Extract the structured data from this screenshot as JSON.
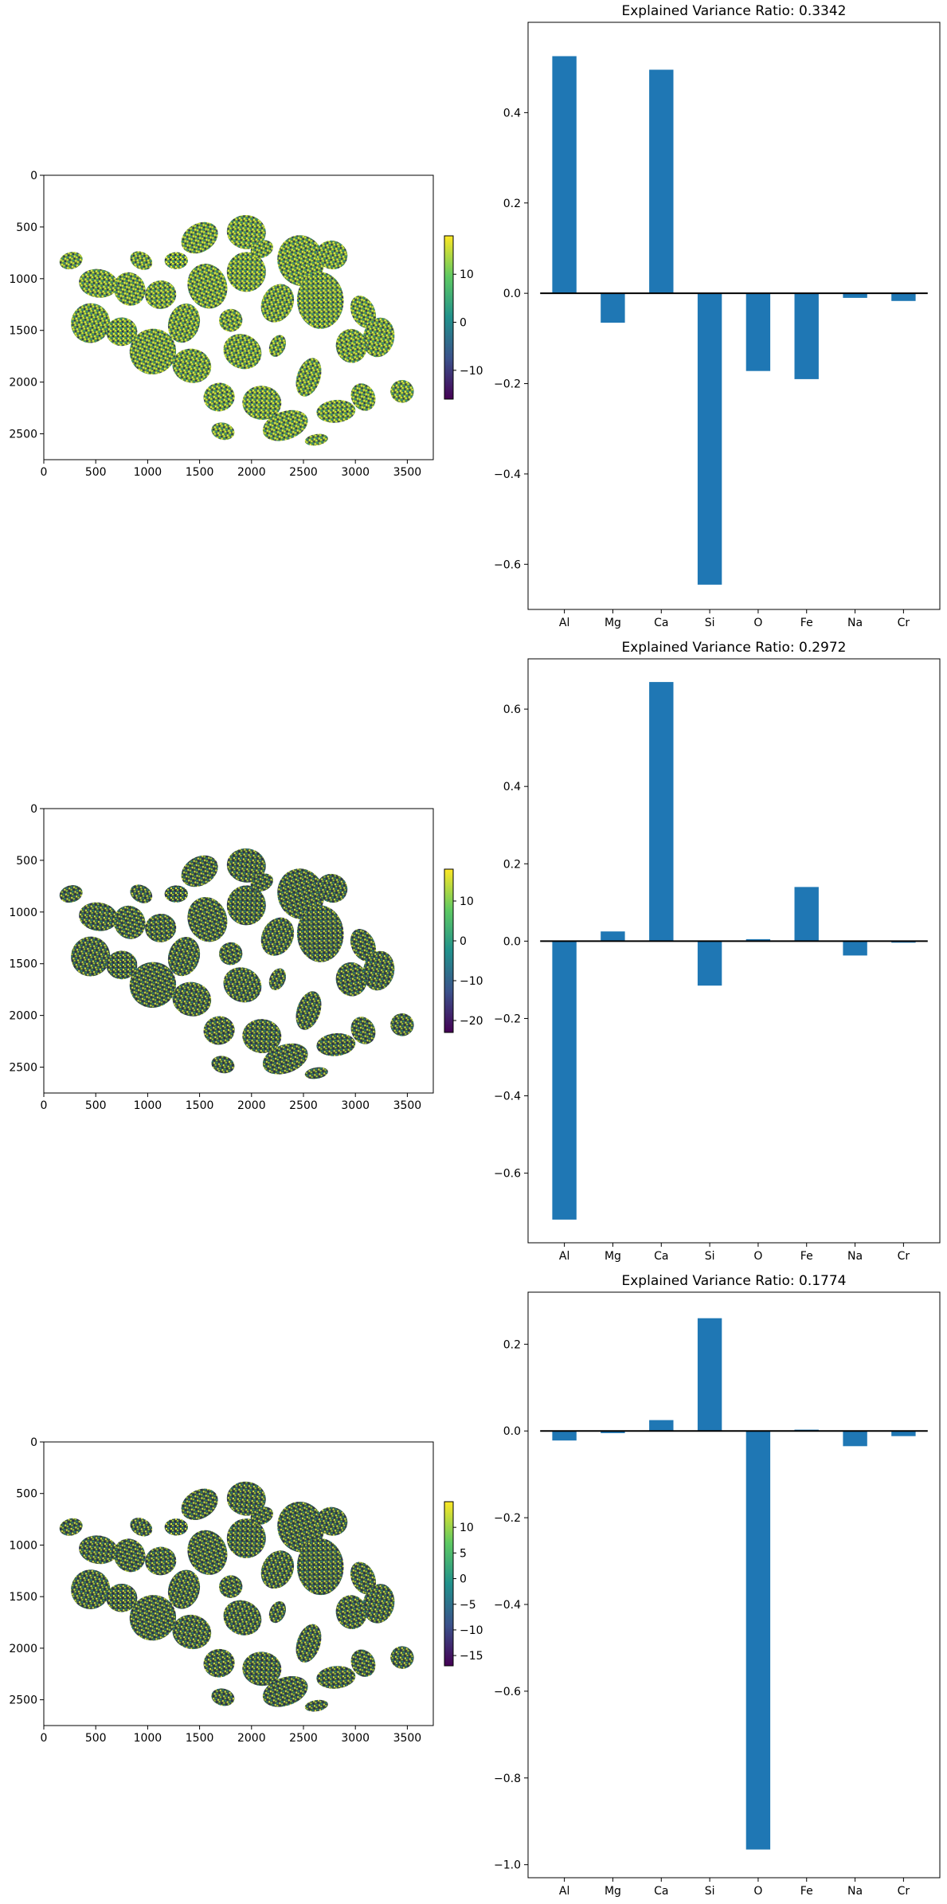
{
  "colormap": "viridis",
  "bar_color": "#1f77b4",
  "chart_data": [
    {
      "type": "heatmap",
      "description_axes": "image map",
      "x_ticks": [
        0,
        500,
        1000,
        1500,
        2000,
        2500,
        3000,
        3500
      ],
      "y_ticks": [
        0,
        500,
        1000,
        1500,
        2000,
        2500
      ],
      "xlim": [
        0,
        3750
      ],
      "ylim": [
        2750,
        0
      ],
      "colorbar_ticks": [
        -10,
        0,
        10
      ],
      "colorbar_range": [
        -16,
        18
      ]
    },
    {
      "type": "bar",
      "title": "Explained Variance Ratio: 0.3342",
      "categories": [
        "Al",
        "Mg",
        "Ca",
        "Si",
        "O",
        "Fe",
        "Na",
        "Cr"
      ],
      "values": [
        0.525,
        -0.065,
        0.495,
        -0.645,
        -0.172,
        -0.19,
        -0.01,
        -0.017
      ],
      "ylim": [
        -0.7,
        0.6
      ],
      "y_ticks": [
        -0.6,
        -0.4,
        -0.2,
        0.0,
        0.2,
        0.4
      ]
    },
    {
      "type": "heatmap",
      "x_ticks": [
        0,
        500,
        1000,
        1500,
        2000,
        2500,
        3000,
        3500
      ],
      "y_ticks": [
        0,
        500,
        1000,
        1500,
        2000,
        2500
      ],
      "xlim": [
        0,
        3750
      ],
      "ylim": [
        2750,
        0
      ],
      "colorbar_ticks": [
        -20,
        -10,
        0,
        10
      ],
      "colorbar_range": [
        -23,
        18
      ]
    },
    {
      "type": "bar",
      "title": "Explained Variance Ratio: 0.2972",
      "categories": [
        "Al",
        "Mg",
        "Ca",
        "Si",
        "O",
        "Fe",
        "Na",
        "Cr"
      ],
      "values": [
        -0.72,
        0.025,
        0.67,
        -0.115,
        0.005,
        0.14,
        -0.037,
        -0.004
      ],
      "ylim": [
        -0.78,
        0.73
      ],
      "y_ticks": [
        -0.6,
        -0.4,
        -0.2,
        0.0,
        0.2,
        0.4,
        0.6
      ]
    },
    {
      "type": "heatmap",
      "x_ticks": [
        0,
        500,
        1000,
        1500,
        2000,
        2500,
        3000,
        3500
      ],
      "y_ticks": [
        0,
        500,
        1000,
        1500,
        2000,
        2500
      ],
      "xlim": [
        0,
        3750
      ],
      "ylim": [
        2750,
        0
      ],
      "colorbar_ticks": [
        -15,
        -10,
        -5,
        0,
        5,
        10
      ],
      "colorbar_range": [
        -17,
        15
      ]
    },
    {
      "type": "bar",
      "title": "Explained Variance Ratio: 0.1774",
      "categories": [
        "Al",
        "Mg",
        "Ca",
        "Si",
        "O",
        "Fe",
        "Na",
        "Cr"
      ],
      "values": [
        -0.022,
        -0.005,
        0.025,
        0.26,
        -0.965,
        0.003,
        -0.035,
        -0.012
      ],
      "ylim": [
        -1.03,
        0.32
      ],
      "y_ticks": [
        -1.0,
        -0.8,
        -0.6,
        -0.4,
        -0.2,
        0.0,
        0.2
      ]
    }
  ]
}
